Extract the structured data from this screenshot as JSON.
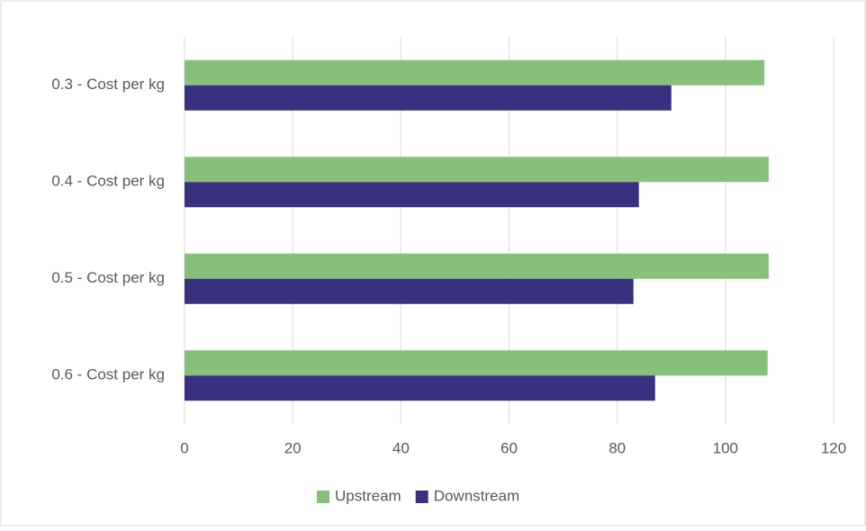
{
  "chart_data": {
    "type": "hbar",
    "categories": [
      "0.3 - Cost per kg",
      "0.4 - Cost per kg",
      "0.5 - Cost per kg",
      "0.6 - Cost per kg"
    ],
    "series": [
      {
        "name": "Upstream",
        "color": "#86c07a",
        "values": [
          107.2,
          108,
          108,
          107.8
        ]
      },
      {
        "name": "Downstream",
        "color": "#38317f",
        "values": [
          90,
          84,
          83,
          87
        ]
      }
    ],
    "xlim": [
      0,
      120
    ],
    "xticks": [
      0,
      20,
      40,
      60,
      80,
      100,
      120
    ],
    "grid": true,
    "legend": "bottom"
  }
}
